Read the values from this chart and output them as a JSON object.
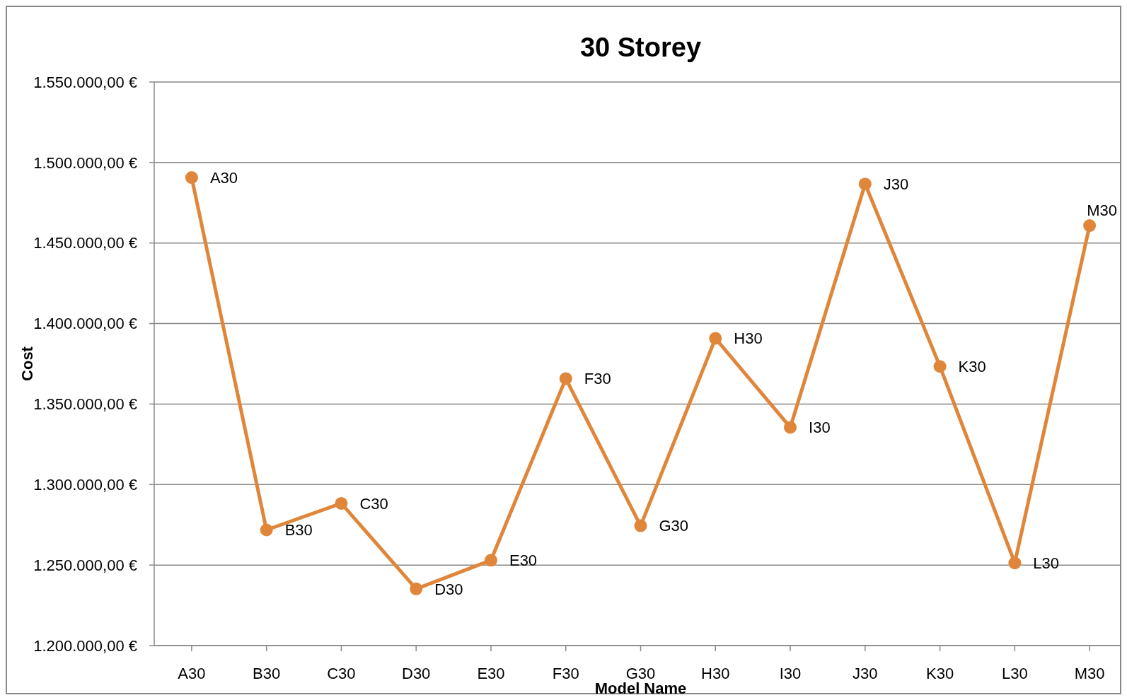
{
  "chart_data": {
    "type": "line",
    "title": "30 Storey",
    "xlabel": "Model Name",
    "ylabel": "Cost",
    "categories": [
      "A30",
      "B30",
      "C30",
      "D30",
      "E30",
      "F30",
      "G30",
      "H30",
      "I30",
      "J30",
      "K30",
      "L30",
      "M30"
    ],
    "series": [
      {
        "color": "#e0863a",
        "values": [
          1490700,
          1271800,
          1288300,
          1235200,
          1253000,
          1365800,
          1274400,
          1390800,
          1335500,
          1486700,
          1373400,
          1251300,
          1460800
        ]
      }
    ],
    "ylim": [
      1200000,
      1550000
    ],
    "yticks": [
      {
        "value": 1200000,
        "label": "1.200.000,00 €"
      },
      {
        "value": 1250000,
        "label": "1.250.000,00 €"
      },
      {
        "value": 1300000,
        "label": "1.300.000,00 €"
      },
      {
        "value": 1350000,
        "label": "1.350.000,00 €"
      },
      {
        "value": 1400000,
        "label": "1.400.000,00 €"
      },
      {
        "value": 1450000,
        "label": "1.450.000,00 €"
      },
      {
        "value": 1500000,
        "label": "1.500.000,00 €"
      },
      {
        "value": 1550000,
        "label": "1.550.000,00 €"
      }
    ],
    "grid": "y",
    "marker": "circle",
    "line_style": "solid",
    "annotations": [
      {
        "text": "A30",
        "x": "A30",
        "y": 1490700
      },
      {
        "text": "B30",
        "x": "B30",
        "y": 1271800
      },
      {
        "text": "C30",
        "x": "C30",
        "y": 1288300
      },
      {
        "text": "D30",
        "x": "D30",
        "y": 1235200
      },
      {
        "text": "E30",
        "x": "E30",
        "y": 1253000
      },
      {
        "text": "F30",
        "x": "F30",
        "y": 1365800
      },
      {
        "text": "G30",
        "x": "G30",
        "y": 1274400
      },
      {
        "text": "H30",
        "x": "H30",
        "y": 1390800
      },
      {
        "text": "I30",
        "x": "I30",
        "y": 1335500
      },
      {
        "text": "J30",
        "x": "J30",
        "y": 1486700
      },
      {
        "text": "K30",
        "x": "K30",
        "y": 1373400
      },
      {
        "text": "L30",
        "x": "L30",
        "y": 1251300
      },
      {
        "text": "M30",
        "x": "M30",
        "y": 1460800
      }
    ]
  }
}
